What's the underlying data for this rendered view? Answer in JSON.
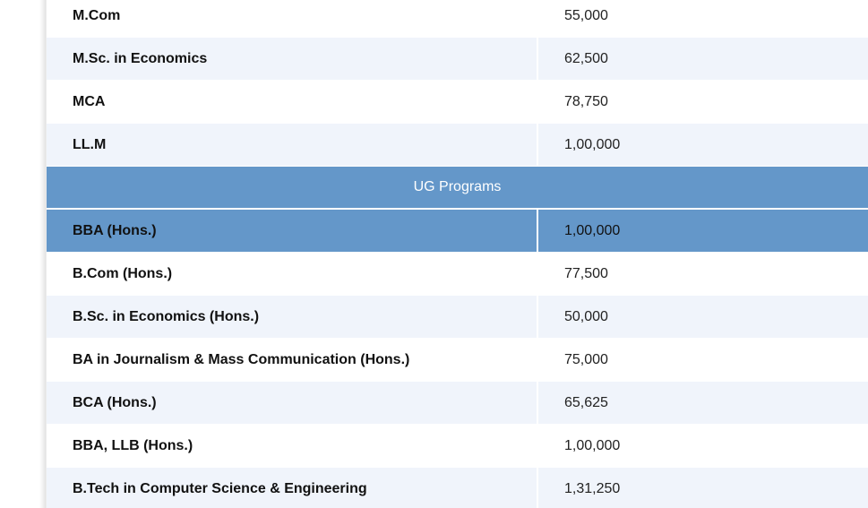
{
  "pg_rows": [
    {
      "program": "M.Com",
      "fee": "55,000"
    },
    {
      "program": "M.Sc. in Economics",
      "fee": "62,500"
    },
    {
      "program": "MCA",
      "fee": "78,750"
    },
    {
      "program": "LL.M",
      "fee": "1,00,000"
    }
  ],
  "ug_section_title": "UG Programs",
  "ug_rows": [
    {
      "program": "BBA (Hons.)",
      "fee": "1,00,000"
    },
    {
      "program": "B.Com (Hons.)",
      "fee": "77,500"
    },
    {
      "program": "B.Sc. in Economics (Hons.)",
      "fee": "50,000"
    },
    {
      "program": "BA in Journalism & Mass Communication (Hons.)",
      "fee": "75,000"
    },
    {
      "program": "BCA (Hons.)",
      "fee": "65,625"
    },
    {
      "program": "BBA, LLB (Hons.)",
      "fee": "1,00,000"
    },
    {
      "program": "B.Tech in Computer Science & Engineering",
      "fee": "1,31,250"
    }
  ],
  "colors": {
    "section_header": "#6497c9",
    "alt_row": "#f0f4fb",
    "plain_row": "#ffffff"
  }
}
